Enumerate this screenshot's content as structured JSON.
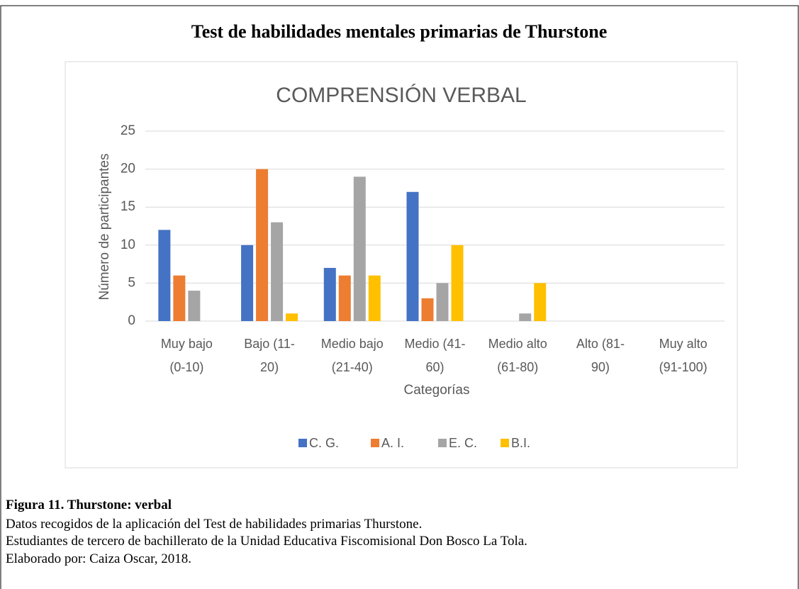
{
  "header": {
    "title": "Test de habilidades mentales primarias de Thurstone"
  },
  "chart_data": {
    "type": "bar",
    "title": "COMPRENSIÓN VERBAL",
    "x_label": "Categorías",
    "y_label": "Número de participantes",
    "categories": [
      "Muy bajo\n(0-10)",
      "Bajo (11-\n20)",
      "Medio bajo\n(21-40)",
      "Medio (41-\n60)",
      "Medio alto\n(61-80)",
      "Alto (81-\n90)",
      "Muy alto\n(91-100)"
    ],
    "series": [
      {
        "name": "C. G.",
        "color": "#4472c4",
        "values": [
          12,
          10,
          7,
          17,
          0,
          0,
          0
        ]
      },
      {
        "name": "A. I.",
        "color": "#ed7d31",
        "values": [
          6,
          20,
          6,
          3,
          0,
          0,
          0
        ]
      },
      {
        "name": "E. C.",
        "color": "#a5a5a5",
        "values": [
          4,
          13,
          19,
          5,
          1,
          0,
          0
        ]
      },
      {
        "name": "B.I.",
        "color": "#ffc000",
        "values": [
          0,
          1,
          6,
          10,
          5,
          0,
          0
        ]
      }
    ],
    "ylim": [
      0,
      25
    ],
    "yticks": [
      0,
      5,
      10,
      15,
      20,
      25
    ],
    "grid": true,
    "legend": "bottom"
  },
  "caption": {
    "title": "Figura 11. Thurstone: verbal",
    "lines": [
      "Datos recogidos de la aplicación del Test de habilidades primarias Thurstone.",
      "Estudiantes de tercero de bachillerato de la Unidad Educativa Fiscomisional Don Bosco La Tola.",
      "Elaborado por: Caiza Oscar, 2018."
    ]
  }
}
